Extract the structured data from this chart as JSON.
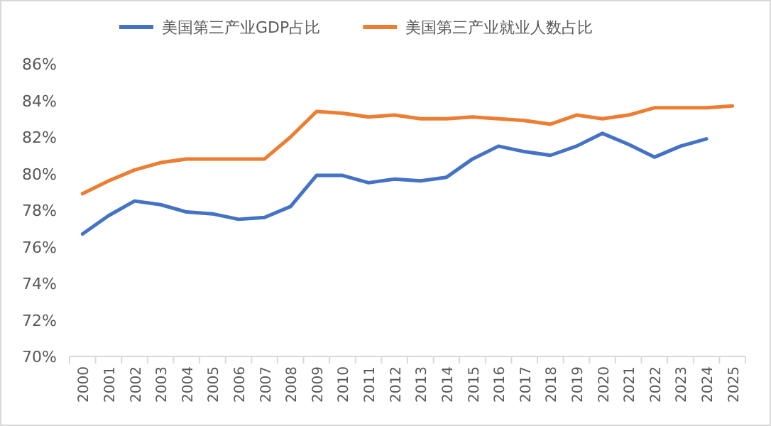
{
  "chart_data": {
    "type": "line",
    "categories": [
      "2000",
      "2001",
      "2002",
      "2003",
      "2004",
      "2005",
      "2006",
      "2007",
      "2008",
      "2009",
      "2010",
      "2011",
      "2012",
      "2013",
      "2014",
      "2015",
      "2016",
      "2017",
      "2018",
      "2019",
      "2020",
      "2021",
      "2022",
      "2023",
      "2024",
      "2025"
    ],
    "series": [
      {
        "name": "美国第三产业GDP占比",
        "color": "#4472c4",
        "values": [
          76.7,
          77.7,
          78.5,
          78.3,
          77.9,
          77.8,
          77.5,
          77.6,
          78.2,
          79.9,
          79.9,
          79.5,
          79.7,
          79.6,
          79.8,
          80.8,
          81.5,
          81.2,
          81.0,
          81.5,
          82.2,
          81.6,
          80.9,
          81.5,
          81.9,
          null
        ]
      },
      {
        "name": "美国第三产业就业人数占比",
        "color": "#ed7d31",
        "values": [
          78.9,
          79.6,
          80.2,
          80.6,
          80.8,
          80.8,
          80.8,
          80.8,
          82.0,
          83.4,
          83.3,
          83.1,
          83.2,
          83.0,
          83.0,
          83.1,
          83.0,
          82.9,
          82.7,
          83.2,
          83.0,
          83.2,
          83.6,
          83.6,
          83.6,
          83.7
        ]
      }
    ],
    "ylim": [
      70,
      86
    ],
    "yticks": [
      {
        "value": 70,
        "label": "70%"
      },
      {
        "value": 72,
        "label": "72%"
      },
      {
        "value": 74,
        "label": "74%"
      },
      {
        "value": 76,
        "label": "76%"
      },
      {
        "value": 78,
        "label": "78%"
      },
      {
        "value": 80,
        "label": "80%"
      },
      {
        "value": 82,
        "label": "82%"
      },
      {
        "value": 84,
        "label": "84%"
      },
      {
        "value": 86,
        "label": "86%"
      }
    ],
    "grid": false,
    "legend": "top",
    "marker": "none",
    "line_style": "solid"
  }
}
